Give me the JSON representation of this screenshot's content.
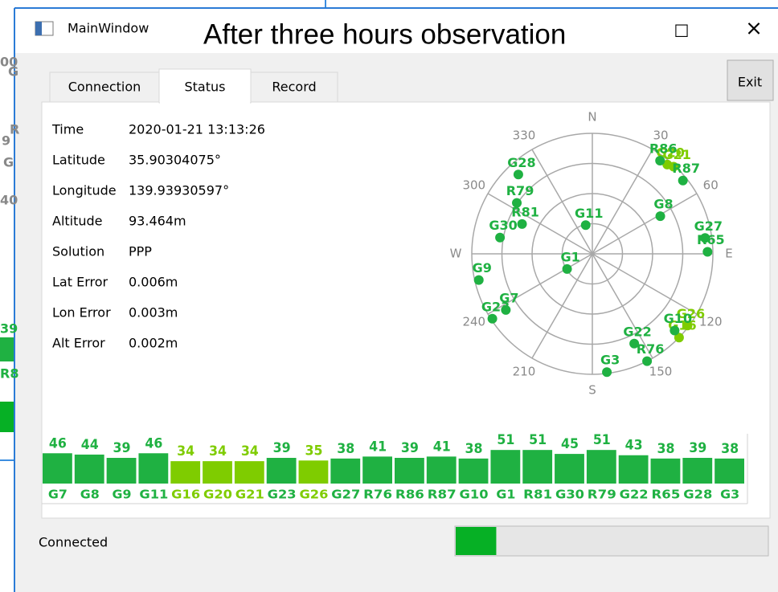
{
  "background_window": {
    "texts": [
      "00",
      "G",
      "9",
      "G",
      "R",
      "40",
      "39",
      "R8"
    ]
  },
  "window": {
    "title": "MainWindow",
    "annotation": "After three hours observation",
    "maximize": "□",
    "close": "×"
  },
  "tabs": {
    "items": [
      "Connection",
      "Status",
      "Record"
    ],
    "active": 1
  },
  "exit_button": "Exit",
  "status": {
    "rows": [
      [
        "Time",
        "2020-01-21 13:13:26"
      ],
      [
        "Latitude",
        "35.90304075°"
      ],
      [
        "Longitude",
        "139.93930597°"
      ],
      [
        "Altitude",
        "93.464m"
      ],
      [
        "Solution",
        "PPP"
      ],
      [
        "Lat Error",
        "0.006m"
      ],
      [
        "Lon Error",
        "0.003m"
      ],
      [
        "Alt Error",
        "0.002m"
      ]
    ]
  },
  "skyplot": {
    "cardinal": [
      {
        "value": 0,
        "label": "N"
      },
      {
        "value": 90,
        "label": "E"
      },
      {
        "value": 180,
        "label": "S"
      },
      {
        "value": 270,
        "label": "W"
      }
    ],
    "azimuth_ticks": [
      30,
      60,
      120,
      150,
      210,
      240,
      300,
      330
    ],
    "elevation_rings": [
      0,
      22.5,
      45,
      67.5
    ],
    "elevation_lim": [
      0,
      90
    ],
    "grid_color": "#a8a8a8"
  },
  "satellites": [
    {
      "name": "G7",
      "azimuth": 237,
      "elevation": 13,
      "snr": 46,
      "color": "#1fb142"
    },
    {
      "name": "G8",
      "azimuth": 61,
      "elevation": 32,
      "snr": 44,
      "color": "#1fb142"
    },
    {
      "name": "G9",
      "azimuth": 257,
      "elevation": 3,
      "snr": 39,
      "color": "#1fb142"
    },
    {
      "name": "G11",
      "azimuth": 347,
      "elevation": 68,
      "snr": 46,
      "color": "#1fb142"
    },
    {
      "name": "G16",
      "azimuth": 134,
      "elevation": 0,
      "snr": 34,
      "color": "#7fcc00"
    },
    {
      "name": "G20",
      "azimuth": 40,
      "elevation": 3,
      "snr": 34,
      "color": "#7fcc00"
    },
    {
      "name": "G21",
      "azimuth": 43,
      "elevation": 1,
      "snr": 34,
      "color": "#7fcc00"
    },
    {
      "name": "G23",
      "azimuth": 237,
      "elevation": 1,
      "snr": 39,
      "color": "#1fb142"
    },
    {
      "name": "G26",
      "azimuth": 127,
      "elevation": 1,
      "snr": 35,
      "color": "#7fcc00"
    },
    {
      "name": "G27",
      "azimuth": 82,
      "elevation": 5,
      "snr": 38,
      "color": "#1fb142"
    },
    {
      "name": "R76",
      "azimuth": 153,
      "elevation": 0,
      "snr": 41,
      "color": "#1fb142"
    },
    {
      "name": "R86",
      "azimuth": 36,
      "elevation": 4,
      "snr": 39,
      "color": "#1fb142"
    },
    {
      "name": "R87",
      "azimuth": 51,
      "elevation": 3,
      "snr": 41,
      "color": "#1fb142"
    },
    {
      "name": "G10",
      "azimuth": 133,
      "elevation": 6,
      "snr": 38,
      "color": "#1fb142"
    },
    {
      "name": "G1",
      "azimuth": 239,
      "elevation": 68,
      "snr": 51,
      "color": "#1fb142"
    },
    {
      "name": "R81",
      "azimuth": 293,
      "elevation": 33,
      "snr": 51,
      "color": "#1fb142"
    },
    {
      "name": "G30",
      "azimuth": 280,
      "elevation": 20,
      "snr": 45,
      "color": "#1fb142"
    },
    {
      "name": "R79",
      "azimuth": 304,
      "elevation": 22,
      "snr": 51,
      "color": "#1fb142"
    },
    {
      "name": "G22",
      "azimuth": 155,
      "elevation": 16,
      "snr": 43,
      "color": "#1fb142"
    },
    {
      "name": "R65",
      "azimuth": 89,
      "elevation": 4,
      "snr": 38,
      "color": "#1fb142"
    },
    {
      "name": "G28",
      "azimuth": 317,
      "elevation": 9,
      "snr": 39,
      "color": "#1fb142"
    },
    {
      "name": "G3",
      "azimuth": 173,
      "elevation": 1,
      "snr": 38,
      "color": "#1fb142"
    }
  ],
  "footer": {
    "status": "Connected",
    "progress": 13,
    "progress_color": "#06b025"
  }
}
